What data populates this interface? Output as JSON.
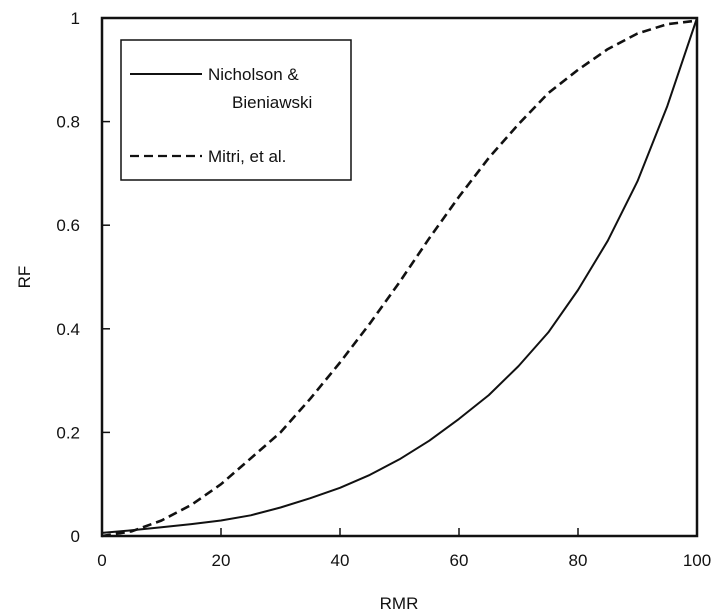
{
  "chart_data": {
    "type": "line",
    "title": "",
    "xlabel": "RMR",
    "ylabel": "RF",
    "xlim": [
      0,
      100
    ],
    "ylim": [
      0,
      1
    ],
    "xticks": [
      0,
      20,
      40,
      60,
      80,
      100
    ],
    "yticks": [
      0,
      0.2,
      0.4,
      0.6,
      0.8,
      1
    ],
    "ytick_labels": [
      "0",
      "0.2",
      "0.4",
      "0.6",
      "0.8",
      "1"
    ],
    "grid": false,
    "legend_position": "top-left",
    "legend_lines": [
      "Nicholson &",
      "Bieniawski",
      "Mitri, et al."
    ],
    "series": [
      {
        "name": "Nicholson & Bieniawski",
        "style": "solid",
        "color": "#111111",
        "x": [
          0,
          5,
          10,
          15,
          20,
          25,
          30,
          35,
          40,
          45,
          50,
          55,
          60,
          65,
          70,
          75,
          80,
          85,
          90,
          95,
          100
        ],
        "y": [
          0.006,
          0.011,
          0.017,
          0.023,
          0.03,
          0.04,
          0.055,
          0.073,
          0.093,
          0.118,
          0.148,
          0.184,
          0.226,
          0.272,
          0.328,
          0.393,
          0.475,
          0.57,
          0.685,
          0.83,
          1.0
        ]
      },
      {
        "name": "Mitri, et al.",
        "style": "dashed",
        "color": "#111111",
        "x": [
          0,
          5,
          10,
          15,
          20,
          25,
          30,
          35,
          40,
          45,
          50,
          55,
          60,
          65,
          70,
          75,
          80,
          85,
          90,
          95,
          100
        ],
        "y": [
          0.0,
          0.009,
          0.03,
          0.06,
          0.1,
          0.15,
          0.2,
          0.265,
          0.335,
          0.41,
          0.49,
          0.575,
          0.655,
          0.73,
          0.795,
          0.855,
          0.9,
          0.94,
          0.97,
          0.988,
          0.995
        ]
      }
    ]
  }
}
